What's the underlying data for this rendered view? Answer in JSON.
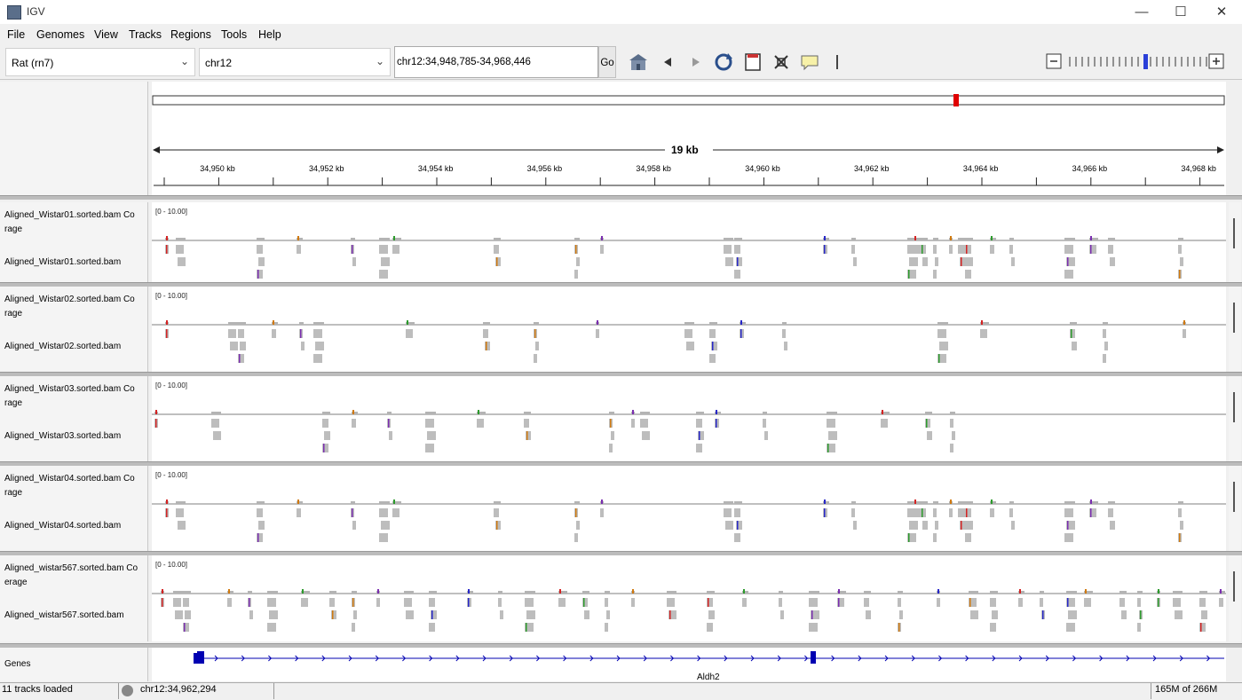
{
  "window": {
    "title": "IGV"
  },
  "menu": [
    "File",
    "Genomes",
    "View",
    "Tracks",
    "Regions",
    "Tools",
    "Help"
  ],
  "toolbar": {
    "genome": "Rat (rn7)",
    "chromosome": "chr12",
    "locus": "chr12:34,948,785-34,968,446",
    "go_label": "Go"
  },
  "ruler": {
    "span_label": "19 kb",
    "ticks": [
      "34,950 kb",
      "34,952 kb",
      "34,954 kb",
      "34,956 kb",
      "34,958 kb",
      "34,960 kb",
      "34,962 kb",
      "34,964 kb",
      "34,966 kb",
      "34,968 kb"
    ]
  },
  "tracks": [
    {
      "coverage_line1": "Aligned_Wistar01.sorted.bam Co",
      "coverage_line2": "rage",
      "bam": "Aligned_Wistar01.sorted.bam",
      "range": "[0 - 10.00]"
    },
    {
      "coverage_line1": "Aligned_Wistar02.sorted.bam Co",
      "coverage_line2": "rage",
      "bam": "Aligned_Wistar02.sorted.bam",
      "range": "[0 - 10.00]"
    },
    {
      "coverage_line1": "Aligned_Wistar03.sorted.bam Co",
      "coverage_line2": "rage",
      "bam": "Aligned_Wistar03.sorted.bam",
      "range": "[0 - 10.00]"
    },
    {
      "coverage_line1": "Aligned_Wistar04.sorted.bam Co",
      "coverage_line2": "rage",
      "bam": "Aligned_Wistar04.sorted.bam",
      "range": "[0 - 10.00]"
    },
    {
      "coverage_line1": "Aligned_wistar567.sorted.bam Co",
      "coverage_line2": "erage",
      "bam": "Aligned_wistar567.sorted.bam",
      "range": "[0 - 10.00]"
    }
  ],
  "genes": {
    "track_label": "Genes",
    "gene_name": "Aldh2"
  },
  "status": {
    "tracks_loaded": "11 tracks loaded",
    "position": "chr12:34,962,294",
    "memory": "165M of 266M"
  },
  "colors": {
    "gene_blue": "#0000b2",
    "coverage_gray": "#b4b4b4",
    "ideogram_marker": "#e00000"
  }
}
